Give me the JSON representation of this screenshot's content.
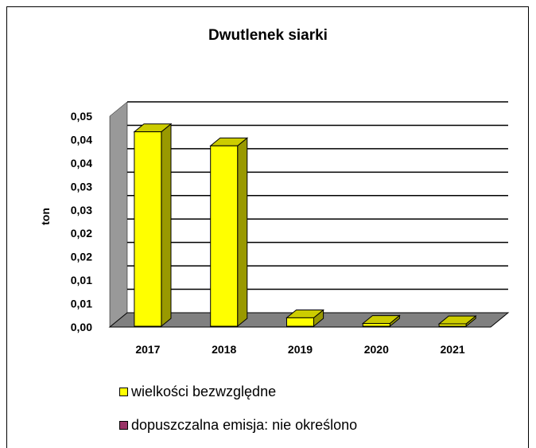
{
  "chart_data": {
    "type": "bar",
    "title": "Dwutlenek siarki",
    "xlabel": "",
    "ylabel": "ton",
    "categories": [
      "2017",
      "2018",
      "2019",
      "2020",
      "2021"
    ],
    "series": [
      {
        "name": "wielkości bezwzględne",
        "values": [
          0.0415,
          0.0385,
          0.0018,
          0.0006,
          0.0005
        ],
        "color": "#FFFF00"
      }
    ],
    "ylim": [
      0,
      0.045
    ],
    "yticks": [
      0,
      0.005,
      0.01,
      0.015,
      0.02,
      0.025,
      0.03,
      0.035,
      0.04,
      0.045
    ],
    "ytick_labels": [
      "0,00",
      "0,01",
      "0,01",
      "0,02",
      "0,02",
      "0,03",
      "0,03",
      "0,04",
      "0,04",
      "0,05"
    ],
    "grid": true,
    "legend_position": "bottom"
  },
  "legend": [
    {
      "label": "wielkości bezwzględne",
      "color": "#FFFF00"
    },
    {
      "label": "dopuszczalna emisja: nie określono",
      "color": "#993366"
    }
  ],
  "colors": {
    "wall": "#999999",
    "floor": "#808080",
    "bar_front": "#FFFF00",
    "bar_side": "#999900",
    "bar_top": "#CCCC00"
  }
}
